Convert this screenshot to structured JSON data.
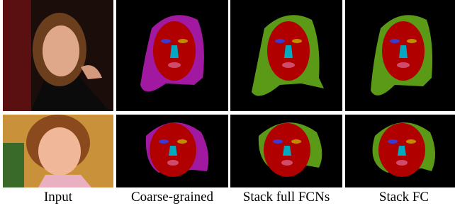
{
  "captions": [
    "Input",
    "Coarse-grained",
    "Stack full FCNs",
    "Stack FC"
  ]
}
